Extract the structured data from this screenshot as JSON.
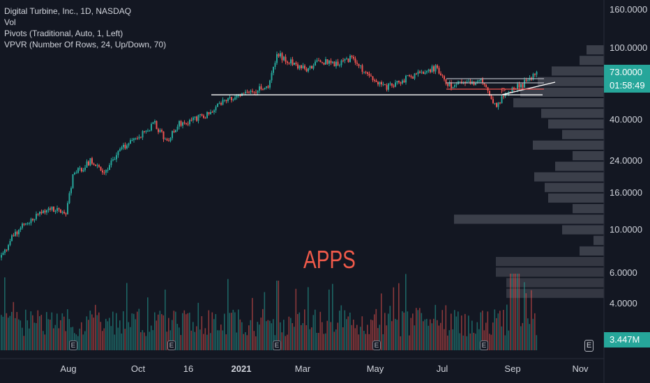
{
  "legend": {
    "symbol_line": "Digital Turbine, Inc., 1D, NASDAQ",
    "vol_label": "Vol",
    "pivots_label": "Pivots (Traditional, Auto, 1, Left)",
    "vpvr_label": "VPVR (Number Of Rows, 24, Up/Down, 70)"
  },
  "annotation_text": "APPS",
  "price_badge": {
    "value": "73.0000",
    "countdown": "01:58:49",
    "color": "#26a69a"
  },
  "volume_badge": {
    "value": "3.447M",
    "color": "#26a69a"
  },
  "earnings_icon_label": "E",
  "colors": {
    "up": "#26a69a",
    "down": "#ef5350",
    "background": "#131722",
    "vpvr": "#5d606b",
    "annotation": "#f05a4a"
  },
  "chart_data": {
    "type": "candlestick",
    "y_scale": "log",
    "y_ticks": [
      "160.0000",
      "100.0000",
      "73.0000",
      "40.0000",
      "24.0000",
      "16.0000",
      "10.0000",
      "6.0000",
      "4.0000"
    ],
    "x_ticks": [
      "Aug",
      "Oct",
      "16",
      "2021",
      "Mar",
      "May",
      "Jul",
      "Sep",
      "Nov"
    ],
    "bold_x_tick": "2021",
    "last_price": 73,
    "price_path": [
      {
        "t": "Jul 2020",
        "price": 7
      },
      {
        "t": "Early Aug 2020",
        "price": 11
      },
      {
        "t": "Mid Aug 2020",
        "price": 20
      },
      {
        "t": "Oct 2020",
        "price": 36
      },
      {
        "t": "Nov 16 2020",
        "price": 40
      },
      {
        "t": "Dec 2020",
        "price": 55
      },
      {
        "t": "Jan 2021",
        "price": 63
      },
      {
        "t": "Feb 2021",
        "price": 95
      },
      {
        "t": "Mar 2021",
        "price": 80
      },
      {
        "t": "Apr 2021",
        "price": 90
      },
      {
        "t": "May 2021",
        "price": 65
      },
      {
        "t": "Jul 2021",
        "price": 78
      },
      {
        "t": "Aug 2021",
        "price": 55
      },
      {
        "t": "Sep 2021",
        "price": 73
      }
    ],
    "horizontal_support_level": 55,
    "vpvr_rows": 24,
    "earnings_markers": [
      "Aug 2020",
      "Nov 2020",
      "Feb 2021",
      "May 2021",
      "Aug 2021"
    ],
    "pivot_label": "P"
  }
}
